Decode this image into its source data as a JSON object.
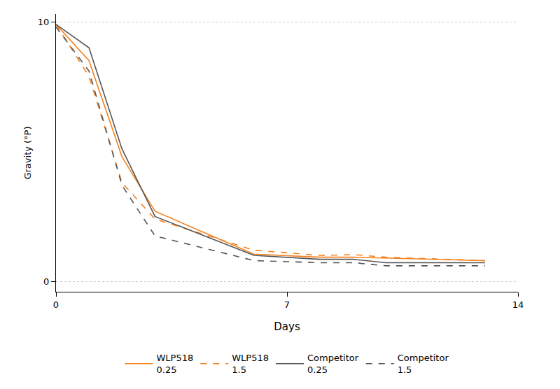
{
  "chart_data": {
    "type": "line",
    "x_label": "Days",
    "y_label": "Gravity (°P)",
    "x": [
      0,
      1,
      2,
      3,
      6,
      8,
      9,
      10,
      13
    ],
    "series": [
      {
        "name": "WLP518 0.25",
        "color": "#f5821f",
        "line_style": "solid",
        "values": [
          9.9,
          8.5,
          4.8,
          2.7,
          1.05,
          0.93,
          0.93,
          0.9,
          0.8
        ]
      },
      {
        "name": "WLP518 1.5",
        "color": "#f5821f",
        "line_style": "dash",
        "values": [
          9.9,
          7.9,
          3.8,
          2.4,
          1.2,
          1.0,
          1.03,
          0.93,
          0.8
        ]
      },
      {
        "name": "Competitor 0.25",
        "color": "#555555",
        "line_style": "solid",
        "values": [
          9.9,
          9.0,
          5.1,
          2.5,
          1.0,
          0.85,
          0.85,
          0.72,
          0.72
        ]
      },
      {
        "name": "Competitor 1.5",
        "color": "#555555",
        "line_style": "dash",
        "values": [
          9.8,
          8.1,
          3.7,
          1.75,
          0.8,
          0.72,
          0.72,
          0.6,
          0.6
        ]
      }
    ],
    "xlim": [
      0,
      14
    ],
    "xticks": [
      0,
      7,
      14
    ],
    "ylim": [
      -0.4,
      10.3
    ],
    "yticks": [
      0,
      10
    ],
    "grid": true,
    "legend": "bottom"
  }
}
